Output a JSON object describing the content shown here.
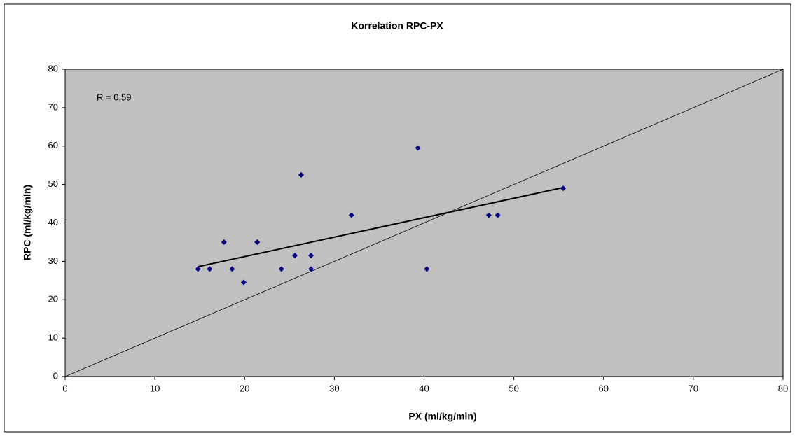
{
  "chart_data": {
    "type": "scatter",
    "title": "Korrelation RPC-PX",
    "x_label": "PX (ml/kg/min)",
    "y_label": "RPC (ml/kg/min)",
    "annotation": "R = 0,59",
    "x": [
      14.8,
      16.1,
      17.7,
      18.6,
      19.9,
      21.4,
      24.1,
      25.6,
      26.3,
      27.4,
      27.4,
      31.9,
      39.3,
      40.3,
      47.2,
      48.2,
      55.5
    ],
    "values": [
      28,
      28,
      35,
      28,
      24.5,
      35,
      28,
      31.5,
      52.5,
      31.5,
      28,
      42,
      59.5,
      28,
      42,
      42,
      49
    ],
    "color": "#000080",
    "trendline": {
      "x": [
        14.8,
        55.5
      ],
      "values": [
        28.6,
        49.2
      ],
      "color": "#000000"
    },
    "reference_line": {
      "x": [
        0,
        80
      ],
      "values": [
        0,
        80
      ],
      "color": "#000000"
    },
    "xlim": [
      0,
      80
    ],
    "ylim": [
      0,
      80
    ],
    "xticks": [
      0,
      10,
      20,
      30,
      40,
      50,
      60,
      70,
      80
    ],
    "yticks": [
      0,
      10,
      20,
      30,
      40,
      50,
      60,
      70,
      80
    ],
    "plot_background": "#c0c0c0"
  }
}
